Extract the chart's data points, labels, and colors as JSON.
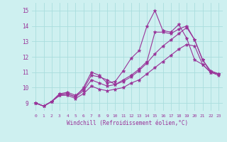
{
  "x": [
    0,
    1,
    2,
    3,
    4,
    5,
    6,
    7,
    8,
    9,
    10,
    11,
    12,
    13,
    14,
    15,
    16,
    17,
    18,
    19,
    20,
    21,
    22,
    23
  ],
  "series1": [
    9.0,
    8.8,
    9.1,
    9.6,
    9.6,
    9.4,
    10.0,
    11.0,
    10.8,
    10.3,
    10.4,
    11.1,
    11.9,
    12.4,
    14.0,
    15.0,
    13.7,
    13.6,
    14.1,
    13.2,
    11.8,
    11.5,
    11.0,
    10.9
  ],
  "series2": [
    9.0,
    8.8,
    9.1,
    9.6,
    9.7,
    9.5,
    9.9,
    10.8,
    10.7,
    10.5,
    10.2,
    10.5,
    10.8,
    11.2,
    11.7,
    13.6,
    13.6,
    13.5,
    13.8,
    14.0,
    13.1,
    11.8,
    11.0,
    10.9
  ],
  "series3": [
    9.0,
    8.8,
    9.1,
    9.5,
    9.6,
    9.4,
    9.8,
    10.5,
    10.3,
    10.1,
    10.2,
    10.4,
    10.7,
    11.1,
    11.6,
    12.2,
    12.7,
    13.1,
    13.5,
    13.9,
    13.1,
    11.8,
    11.1,
    10.9
  ],
  "series4": [
    9.0,
    8.8,
    9.1,
    9.5,
    9.5,
    9.3,
    9.6,
    10.1,
    9.9,
    9.8,
    9.9,
    10.0,
    10.3,
    10.5,
    10.9,
    11.3,
    11.7,
    12.1,
    12.5,
    12.8,
    12.7,
    11.5,
    11.0,
    10.8
  ],
  "line_color": "#993399",
  "bg_color": "#cef0f0",
  "grid_color": "#aadddd",
  "xlabel": "Windchill (Refroidissement éolien,°C)",
  "ylim": [
    8.5,
    15.5
  ],
  "xlim": [
    -0.5,
    23.5
  ],
  "yticks": [
    9,
    10,
    11,
    12,
    13,
    14,
    15
  ],
  "xticks": [
    0,
    1,
    2,
    3,
    4,
    5,
    6,
    7,
    8,
    9,
    10,
    11,
    12,
    13,
    14,
    15,
    16,
    17,
    18,
    19,
    20,
    21,
    22,
    23
  ]
}
